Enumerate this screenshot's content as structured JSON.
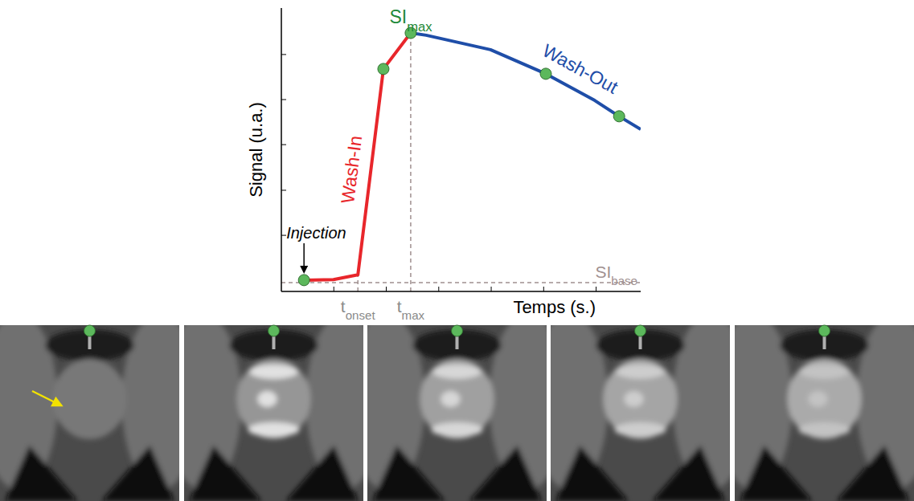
{
  "chart_data": {
    "type": "line",
    "x_label": "Temps (s.)",
    "y_label": "Signal (u.a.)",
    "xlim": [
      0,
      100
    ],
    "ylim": [
      0,
      100
    ],
    "xticks": [
      14.6,
      29.2,
      43.8,
      58.4,
      73.0,
      87.6
    ],
    "yticks": [
      19.8,
      35.7,
      51.8,
      67.7,
      83.6
    ],
    "tick_labels": false,
    "grid": false,
    "series": [
      {
        "name": "Wash-In",
        "color": "#e8262b",
        "x": [
          6.3,
          14.5,
          21.3,
          28.4,
          36.0
        ],
        "values": [
          4.0,
          4.2,
          5.9,
          78.5,
          91.2
        ]
      },
      {
        "name": "Wash-Out",
        "color": "#1f4ea8",
        "x": [
          36.0,
          40.3,
          58.2,
          73.6,
          87.2,
          94.0,
          100
        ],
        "values": [
          91.2,
          90.4,
          85.3,
          76.8,
          67.4,
          61.8,
          57.2
        ]
      },
      {
        "type": "scatter",
        "marker": "circle",
        "color": "#5cb85c",
        "x": [
          6.3,
          28.4,
          36.0,
          73.6,
          94.0
        ],
        "values": [
          4.0,
          78.5,
          91.2,
          76.8,
          61.8
        ]
      }
    ],
    "reference_lines": [
      {
        "axis": "y",
        "value": 3.1,
        "label": {
          "main": "SI",
          "sub": "base"
        }
      },
      {
        "axis": "x",
        "value": 21.3,
        "y_end": 5.9,
        "label": {
          "main": "t",
          "sub": "onset"
        }
      },
      {
        "axis": "x",
        "value": 36.0,
        "y_end": 91.2,
        "label": {
          "main": "t",
          "sub": "max"
        }
      }
    ],
    "annotations": [
      {
        "text": "Injection",
        "x": 6.3,
        "y": 4.0
      },
      {
        "label": {
          "main": "SI",
          "sub": "max"
        },
        "x": 36.0,
        "y": 91.2,
        "color": "#1f8a3a"
      }
    ]
  }
}
